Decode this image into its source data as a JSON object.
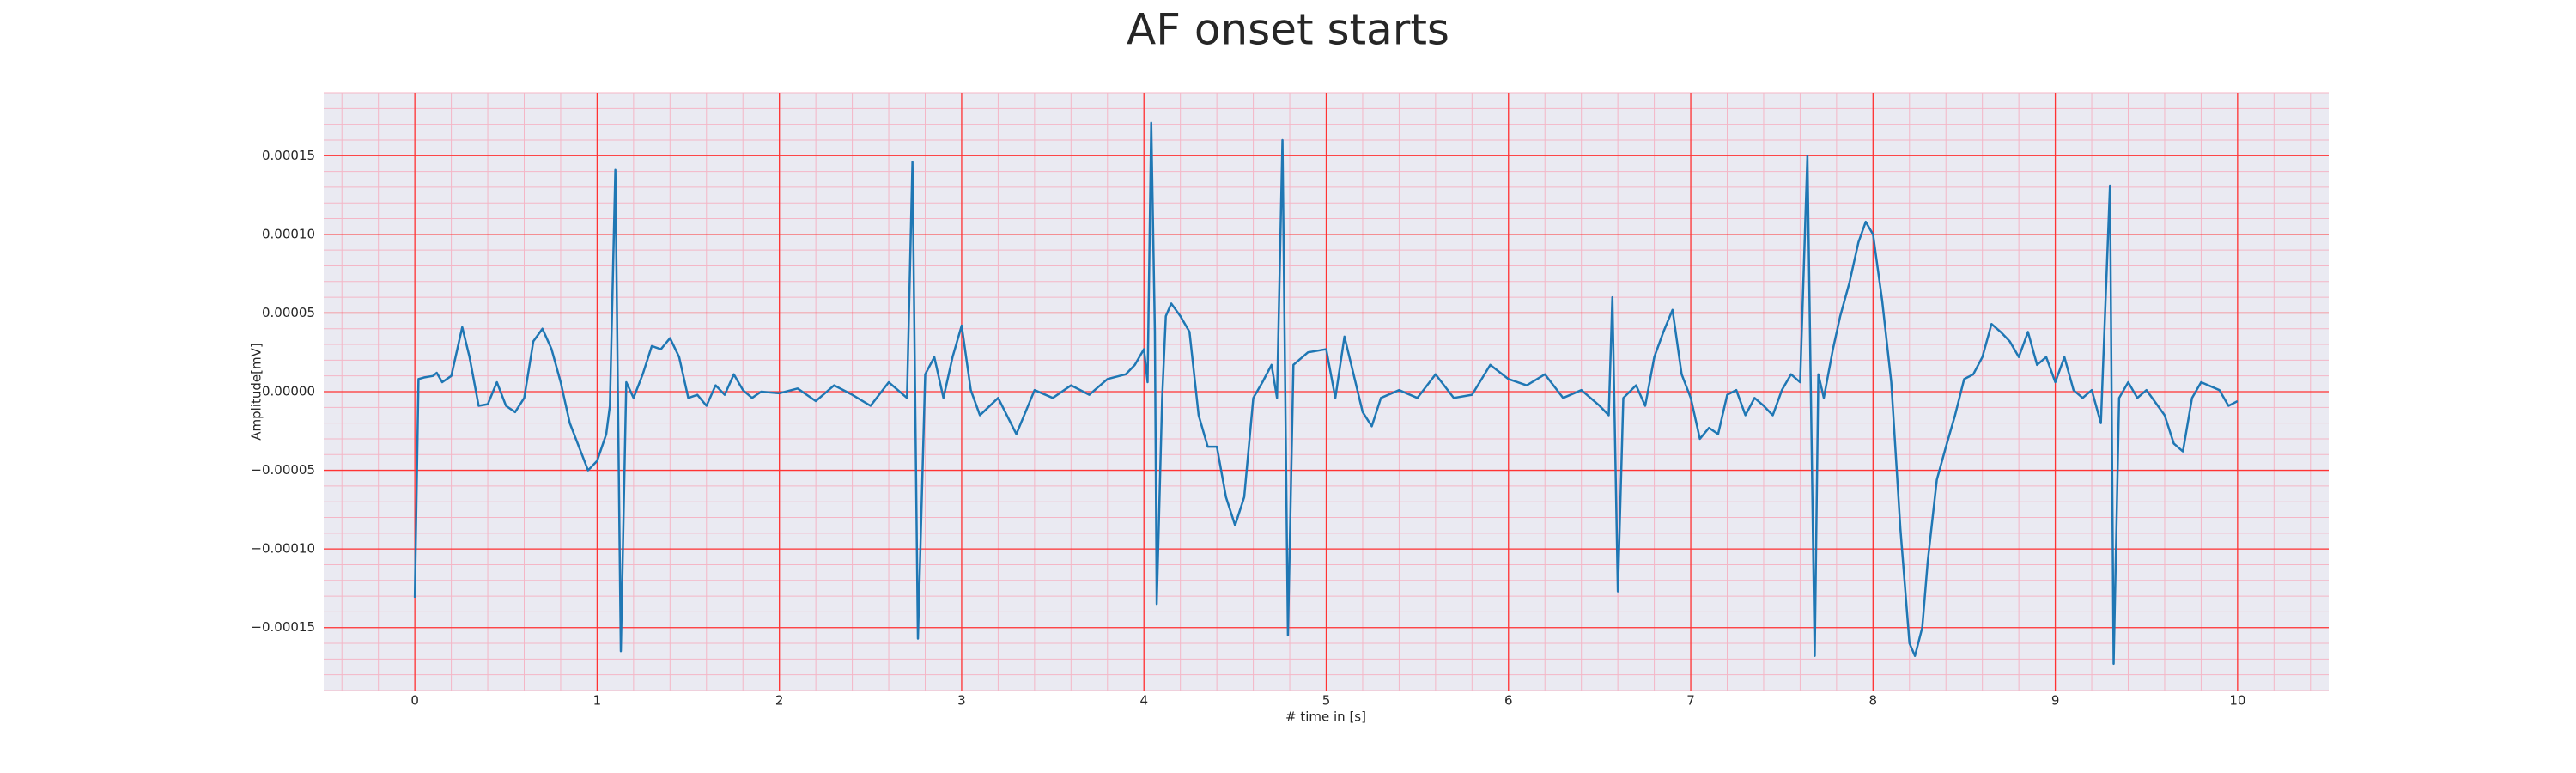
{
  "chart_data": {
    "type": "line",
    "title": "AF onset starts",
    "xlabel": "# time in [s]",
    "ylabel": "Amplitude[mV]",
    "xlim": [
      -0.5,
      10.5
    ],
    "xticks": [
      0,
      1,
      2,
      3,
      4,
      5,
      6,
      7,
      8,
      9,
      10
    ],
    "ylim": [
      -0.00019,
      0.00019
    ],
    "yticks": [
      {
        "value": -0.00015,
        "label": "−0.00015"
      },
      {
        "value": -0.0001,
        "label": "−0.00010"
      },
      {
        "value": -5e-05,
        "label": "−0.00005"
      },
      {
        "value": 0,
        "label": "0.00000"
      },
      {
        "value": 5e-05,
        "label": "0.00005"
      },
      {
        "value": 0.0001,
        "label": "0.00010"
      },
      {
        "value": 0.00015,
        "label": "0.00015"
      }
    ],
    "grid": true,
    "minor_grid": {
      "x": 0.2,
      "y": 1e-05
    },
    "series": [
      {
        "color": "#1f77b4",
        "x": [
          0,
          0.02,
          0.05,
          0.1,
          0.12,
          0.15,
          0.2,
          0.26,
          0.3,
          0.35,
          0.4,
          0.45,
          0.5,
          0.55,
          0.6,
          0.65,
          0.7,
          0.75,
          0.8,
          0.85,
          0.9,
          0.95,
          1.0,
          1.05,
          1.07,
          1.1,
          1.13,
          1.16,
          1.2,
          1.25,
          1.3,
          1.35,
          1.4,
          1.45,
          1.5,
          1.55,
          1.6,
          1.65,
          1.7,
          1.75,
          1.8,
          1.85,
          1.9,
          2.0,
          2.1,
          2.2,
          2.3,
          2.4,
          2.5,
          2.6,
          2.7,
          2.73,
          2.76,
          2.8,
          2.85,
          2.9,
          2.95,
          3.0,
          3.05,
          3.1,
          3.2,
          3.3,
          3.4,
          3.5,
          3.6,
          3.7,
          3.8,
          3.9,
          3.95,
          4.0,
          4.02,
          4.04,
          4.06,
          4.07,
          4.1,
          4.12,
          4.15,
          4.2,
          4.25,
          4.3,
          4.35,
          4.4,
          4.45,
          4.5,
          4.55,
          4.6,
          4.65,
          4.7,
          4.73,
          4.76,
          4.79,
          4.82,
          4.9,
          5.0,
          5.05,
          5.1,
          5.15,
          5.2,
          5.25,
          5.3,
          5.4,
          5.5,
          5.6,
          5.7,
          5.8,
          5.9,
          6.0,
          6.1,
          6.2,
          6.3,
          6.4,
          6.5,
          6.55,
          6.57,
          6.6,
          6.63,
          6.7,
          6.75,
          6.8,
          6.85,
          6.9,
          6.95,
          7.0,
          7.05,
          7.1,
          7.15,
          7.2,
          7.25,
          7.3,
          7.35,
          7.4,
          7.45,
          7.5,
          7.55,
          7.6,
          7.64,
          7.68,
          7.7,
          7.73,
          7.78,
          7.82,
          7.87,
          7.92,
          7.96,
          8.0,
          8.05,
          8.1,
          8.15,
          8.2,
          8.23,
          8.27,
          8.3,
          8.35,
          8.4,
          8.45,
          8.5,
          8.55,
          8.6,
          8.65,
          8.7,
          8.75,
          8.8,
          8.85,
          8.9,
          8.95,
          9.0,
          9.05,
          9.1,
          9.15,
          9.2,
          9.25,
          9.3,
          9.32,
          9.35,
          9.4,
          9.45,
          9.5,
          9.6,
          9.65,
          9.7,
          9.75,
          9.8,
          9.9,
          9.95,
          10.0
        ],
        "values": [
          -0.000131,
          8e-06,
          9e-06,
          1e-05,
          1.2e-05,
          6e-06,
          1e-05,
          4.1e-05,
          2.2e-05,
          -9e-06,
          -8e-06,
          6e-06,
          -9e-06,
          -1.3e-05,
          -4e-06,
          3.2e-05,
          4e-05,
          2.7e-05,
          6e-06,
          -2e-05,
          -3.5e-05,
          -5e-05,
          -4.4e-05,
          -2.7e-05,
          -9e-06,
          0.000141,
          -0.000165,
          6e-06,
          -4e-06,
          1.1e-05,
          2.9e-05,
          2.7e-05,
          3.4e-05,
          2.2e-05,
          -4e-06,
          -2e-06,
          -9e-06,
          4e-06,
          -2e-06,
          1.1e-05,
          1e-06,
          -4e-06,
          0,
          -1e-06,
          2e-06,
          -6e-06,
          4e-06,
          -2e-06,
          -9e-06,
          6e-06,
          -4e-06,
          0.000146,
          -0.000157,
          1.1e-05,
          2.2e-05,
          -4e-06,
          2.2e-05,
          4.2e-05,
          1e-06,
          -1.5e-05,
          -4e-06,
          -2.7e-05,
          1e-06,
          -4e-06,
          4e-06,
          -2e-06,
          8e-06,
          1.1e-05,
          1.7e-05,
          2.7e-05,
          6e-06,
          0.000171,
          3.8e-05,
          -0.000135,
          -4e-06,
          4.8e-05,
          5.6e-05,
          4.8e-05,
          3.8e-05,
          -1.5e-05,
          -3.5e-05,
          -3.5e-05,
          -6.7e-05,
          -8.5e-05,
          -6.7e-05,
          -4e-06,
          6e-06,
          1.7e-05,
          -4e-06,
          0.00016,
          -0.000155,
          1.7e-05,
          2.5e-05,
          2.7e-05,
          -4e-06,
          3.5e-05,
          1.1e-05,
          -1.3e-05,
          -2.2e-05,
          -4e-06,
          1e-06,
          -4e-06,
          1.1e-05,
          -4e-06,
          -2e-06,
          1.7e-05,
          8e-06,
          4e-06,
          1.1e-05,
          -4e-06,
          1e-06,
          -9e-06,
          -1.5e-05,
          6e-05,
          -0.000127,
          -4e-06,
          4e-06,
          -9e-06,
          2.2e-05,
          3.8e-05,
          5.2e-05,
          1.1e-05,
          -4e-06,
          -3e-05,
          -2.3e-05,
          -2.7e-05,
          -2e-06,
          1e-06,
          -1.5e-05,
          -4e-06,
          -9e-06,
          -1.5e-05,
          1e-06,
          1.1e-05,
          6e-06,
          0.00015,
          -0.000168,
          1.1e-05,
          -4e-06,
          2.7e-05,
          4.8e-05,
          6.9e-05,
          9.5e-05,
          0.000108,
          0.0001,
          5.8e-05,
          6e-06,
          -8.7e-05,
          -0.00016,
          -0.000168,
          -0.00015,
          -0.000108,
          -5.6e-05,
          -3.5e-05,
          -1.5e-05,
          8e-06,
          1.1e-05,
          2.2e-05,
          4.3e-05,
          3.8e-05,
          3.2e-05,
          2.2e-05,
          3.8e-05,
          1.7e-05,
          2.2e-05,
          6e-06,
          2.2e-05,
          1e-06,
          -4e-06,
          1e-06,
          -2e-05,
          0.000131,
          -0.000173,
          -4e-06,
          6e-06,
          -4e-06,
          1e-06,
          -1.5e-05,
          -3.3e-05,
          -3.8e-05,
          -4e-06,
          6e-06,
          1e-06,
          -9e-06,
          -6e-06
        ]
      }
    ]
  }
}
